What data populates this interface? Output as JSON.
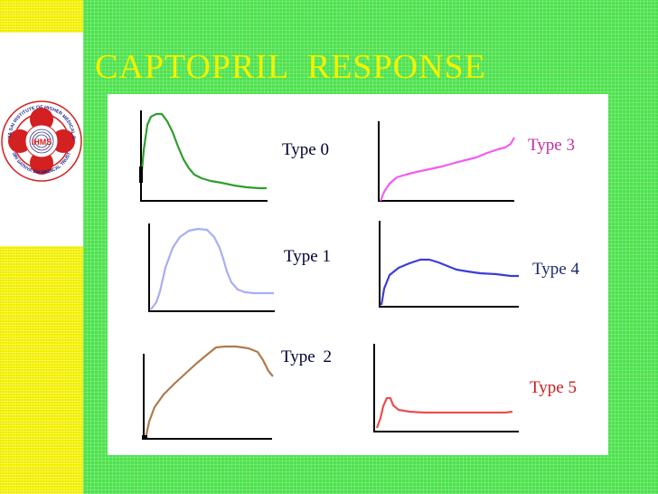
{
  "slide": {
    "title": "CAPTOPRIL  RESPONSE"
  },
  "logo": {
    "ring_text": "SRI SATHYA SAI INSTITUTE OF HIGHER MEDICAL SCIENCES",
    "center_text": "IHMS",
    "bottom_text": "SRI SATHYA SAI MEDICAL TRUST"
  },
  "response_types": [
    {
      "label": "Type 0",
      "color": "#2e9e2e"
    },
    {
      "label": "Type 1",
      "color": "#a7aef3"
    },
    {
      "label": "Type 2",
      "color": "#b07a4c"
    },
    {
      "label": "Type 3",
      "color": "#f25cf2"
    },
    {
      "label": "Type 4",
      "color": "#3c3cd8"
    },
    {
      "label": "Type 5",
      "color": "#e85050"
    }
  ],
  "colors": {
    "background": "#4ee24e",
    "side_strip": "#f4f400",
    "title": "#f2f200",
    "axis": "#000000"
  }
}
